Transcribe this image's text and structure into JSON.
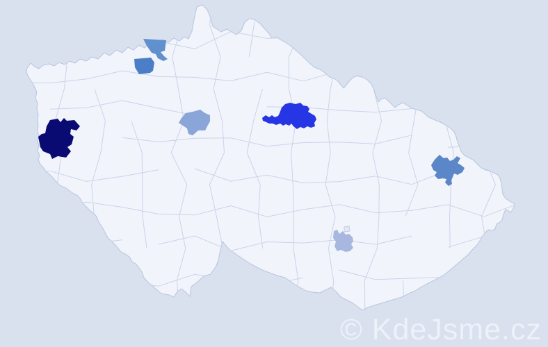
{
  "map": {
    "background_color": "#d9e1ee",
    "land_color": "#f1f4fa",
    "district_border_color": "#c9d3ea",
    "highlighted_districts": [
      {
        "id": "west-bohemia-dark",
        "color": "#0a0a73"
      },
      {
        "id": "northwest-upper",
        "color": "#6190ce"
      },
      {
        "id": "northwest-lower",
        "color": "#4c7ec8"
      },
      {
        "id": "central-bohemia",
        "color": "#8aa5d8"
      },
      {
        "id": "east-bohemia-vivid",
        "color": "#2636e4"
      },
      {
        "id": "north-moravia",
        "color": "#5b87c8"
      },
      {
        "id": "south-moravia-light",
        "color": "#a7b7df"
      }
    ]
  },
  "watermark": {
    "text": "© KdeJsme.cz",
    "color": "#edf1f9"
  }
}
